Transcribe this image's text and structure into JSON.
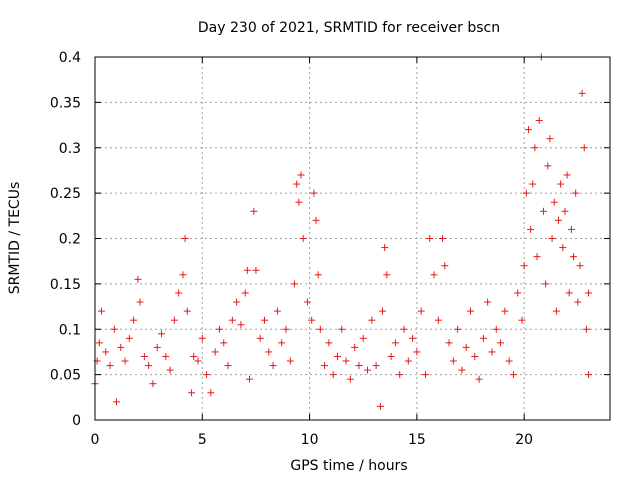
{
  "chart_data": {
    "type": "scatter",
    "title": "Day 230 of 2021, SRMTID for receiver bscn",
    "xlabel": "GPS time / hours",
    "ylabel": "SRMTID / TECUs",
    "xlim": [
      0,
      24
    ],
    "ylim": [
      0,
      0.4
    ],
    "x_ticks": [
      0,
      5,
      10,
      15,
      20
    ],
    "y_ticks": [
      0,
      0.05,
      0.1,
      0.15,
      0.2,
      0.25,
      0.3,
      0.35,
      0.4
    ],
    "grid": true,
    "marker": "+",
    "marker_color": "#e41a1c",
    "series": [
      {
        "name": "SRMTID",
        "points": [
          [
            0.0,
            0.04
          ],
          [
            0.1,
            0.065
          ],
          [
            0.2,
            0.085
          ],
          [
            0.3,
            0.12
          ],
          [
            0.5,
            0.075
          ],
          [
            0.7,
            0.06
          ],
          [
            0.9,
            0.1
          ],
          [
            1.0,
            0.02
          ],
          [
            1.2,
            0.08
          ],
          [
            1.4,
            0.065
          ],
          [
            1.6,
            0.09
          ],
          [
            1.8,
            0.11
          ],
          [
            2.0,
            0.155
          ],
          [
            2.1,
            0.13
          ],
          [
            2.3,
            0.07
          ],
          [
            2.5,
            0.06
          ],
          [
            2.7,
            0.04
          ],
          [
            2.9,
            0.08
          ],
          [
            3.1,
            0.095
          ],
          [
            3.3,
            0.07
          ],
          [
            3.5,
            0.055
          ],
          [
            3.7,
            0.11
          ],
          [
            3.9,
            0.14
          ],
          [
            4.1,
            0.16
          ],
          [
            4.2,
            0.2
          ],
          [
            4.3,
            0.12
          ],
          [
            4.5,
            0.03
          ],
          [
            4.6,
            0.07
          ],
          [
            4.8,
            0.065
          ],
          [
            5.0,
            0.09
          ],
          [
            5.2,
            0.05
          ],
          [
            5.4,
            0.03
          ],
          [
            5.6,
            0.075
          ],
          [
            5.8,
            0.1
          ],
          [
            6.0,
            0.085
          ],
          [
            6.2,
            0.06
          ],
          [
            6.4,
            0.11
          ],
          [
            6.6,
            0.13
          ],
          [
            6.8,
            0.105
          ],
          [
            7.0,
            0.14
          ],
          [
            7.1,
            0.165
          ],
          [
            7.2,
            0.045
          ],
          [
            7.4,
            0.23
          ],
          [
            7.5,
            0.165
          ],
          [
            7.7,
            0.09
          ],
          [
            7.9,
            0.11
          ],
          [
            8.1,
            0.075
          ],
          [
            8.3,
            0.06
          ],
          [
            8.5,
            0.12
          ],
          [
            8.7,
            0.085
          ],
          [
            8.9,
            0.1
          ],
          [
            9.1,
            0.065
          ],
          [
            9.3,
            0.15
          ],
          [
            9.4,
            0.26
          ],
          [
            9.5,
            0.24
          ],
          [
            9.6,
            0.27
          ],
          [
            9.7,
            0.2
          ],
          [
            9.9,
            0.13
          ],
          [
            10.1,
            0.11
          ],
          [
            10.2,
            0.25
          ],
          [
            10.3,
            0.22
          ],
          [
            10.4,
            0.16
          ],
          [
            10.5,
            0.1
          ],
          [
            10.7,
            0.06
          ],
          [
            10.9,
            0.085
          ],
          [
            11.1,
            0.05
          ],
          [
            11.3,
            0.07
          ],
          [
            11.5,
            0.1
          ],
          [
            11.7,
            0.065
          ],
          [
            11.9,
            0.045
          ],
          [
            12.1,
            0.08
          ],
          [
            12.3,
            0.06
          ],
          [
            12.5,
            0.09
          ],
          [
            12.7,
            0.055
          ],
          [
            12.9,
            0.11
          ],
          [
            13.1,
            0.06
          ],
          [
            13.3,
            0.015
          ],
          [
            13.4,
            0.12
          ],
          [
            13.5,
            0.19
          ],
          [
            13.6,
            0.16
          ],
          [
            13.8,
            0.07
          ],
          [
            14.0,
            0.085
          ],
          [
            14.2,
            0.05
          ],
          [
            14.4,
            0.1
          ],
          [
            14.6,
            0.065
          ],
          [
            14.8,
            0.09
          ],
          [
            15.0,
            0.075
          ],
          [
            15.2,
            0.12
          ],
          [
            15.4,
            0.05
          ],
          [
            15.6,
            0.2
          ],
          [
            15.8,
            0.16
          ],
          [
            16.0,
            0.11
          ],
          [
            16.2,
            0.2
          ],
          [
            16.3,
            0.17
          ],
          [
            16.5,
            0.085
          ],
          [
            16.7,
            0.065
          ],
          [
            16.9,
            0.1
          ],
          [
            17.1,
            0.055
          ],
          [
            17.3,
            0.08
          ],
          [
            17.5,
            0.12
          ],
          [
            17.7,
            0.07
          ],
          [
            17.9,
            0.045
          ],
          [
            18.1,
            0.09
          ],
          [
            18.3,
            0.13
          ],
          [
            18.5,
            0.075
          ],
          [
            18.7,
            0.1
          ],
          [
            18.9,
            0.085
          ],
          [
            19.1,
            0.12
          ],
          [
            19.3,
            0.065
          ],
          [
            19.5,
            0.05
          ],
          [
            19.7,
            0.14
          ],
          [
            19.9,
            0.11
          ],
          [
            20.0,
            0.17
          ],
          [
            20.1,
            0.25
          ],
          [
            20.2,
            0.32
          ],
          [
            20.3,
            0.21
          ],
          [
            20.4,
            0.26
          ],
          [
            20.5,
            0.3
          ],
          [
            20.6,
            0.18
          ],
          [
            20.7,
            0.33
          ],
          [
            20.8,
            0.4
          ],
          [
            20.9,
            0.23
          ],
          [
            21.0,
            0.15
          ],
          [
            21.1,
            0.28
          ],
          [
            21.2,
            0.31
          ],
          [
            21.3,
            0.2
          ],
          [
            21.4,
            0.24
          ],
          [
            21.5,
            0.12
          ],
          [
            21.6,
            0.22
          ],
          [
            21.7,
            0.26
          ],
          [
            21.8,
            0.19
          ],
          [
            21.9,
            0.23
          ],
          [
            22.0,
            0.27
          ],
          [
            22.1,
            0.14
          ],
          [
            22.2,
            0.21
          ],
          [
            22.3,
            0.18
          ],
          [
            22.4,
            0.25
          ],
          [
            22.5,
            0.13
          ],
          [
            22.6,
            0.17
          ],
          [
            22.7,
            0.36
          ],
          [
            22.8,
            0.3
          ],
          [
            22.9,
            0.1
          ],
          [
            23.0,
            0.05
          ],
          [
            23.0,
            0.14
          ]
        ]
      }
    ]
  }
}
